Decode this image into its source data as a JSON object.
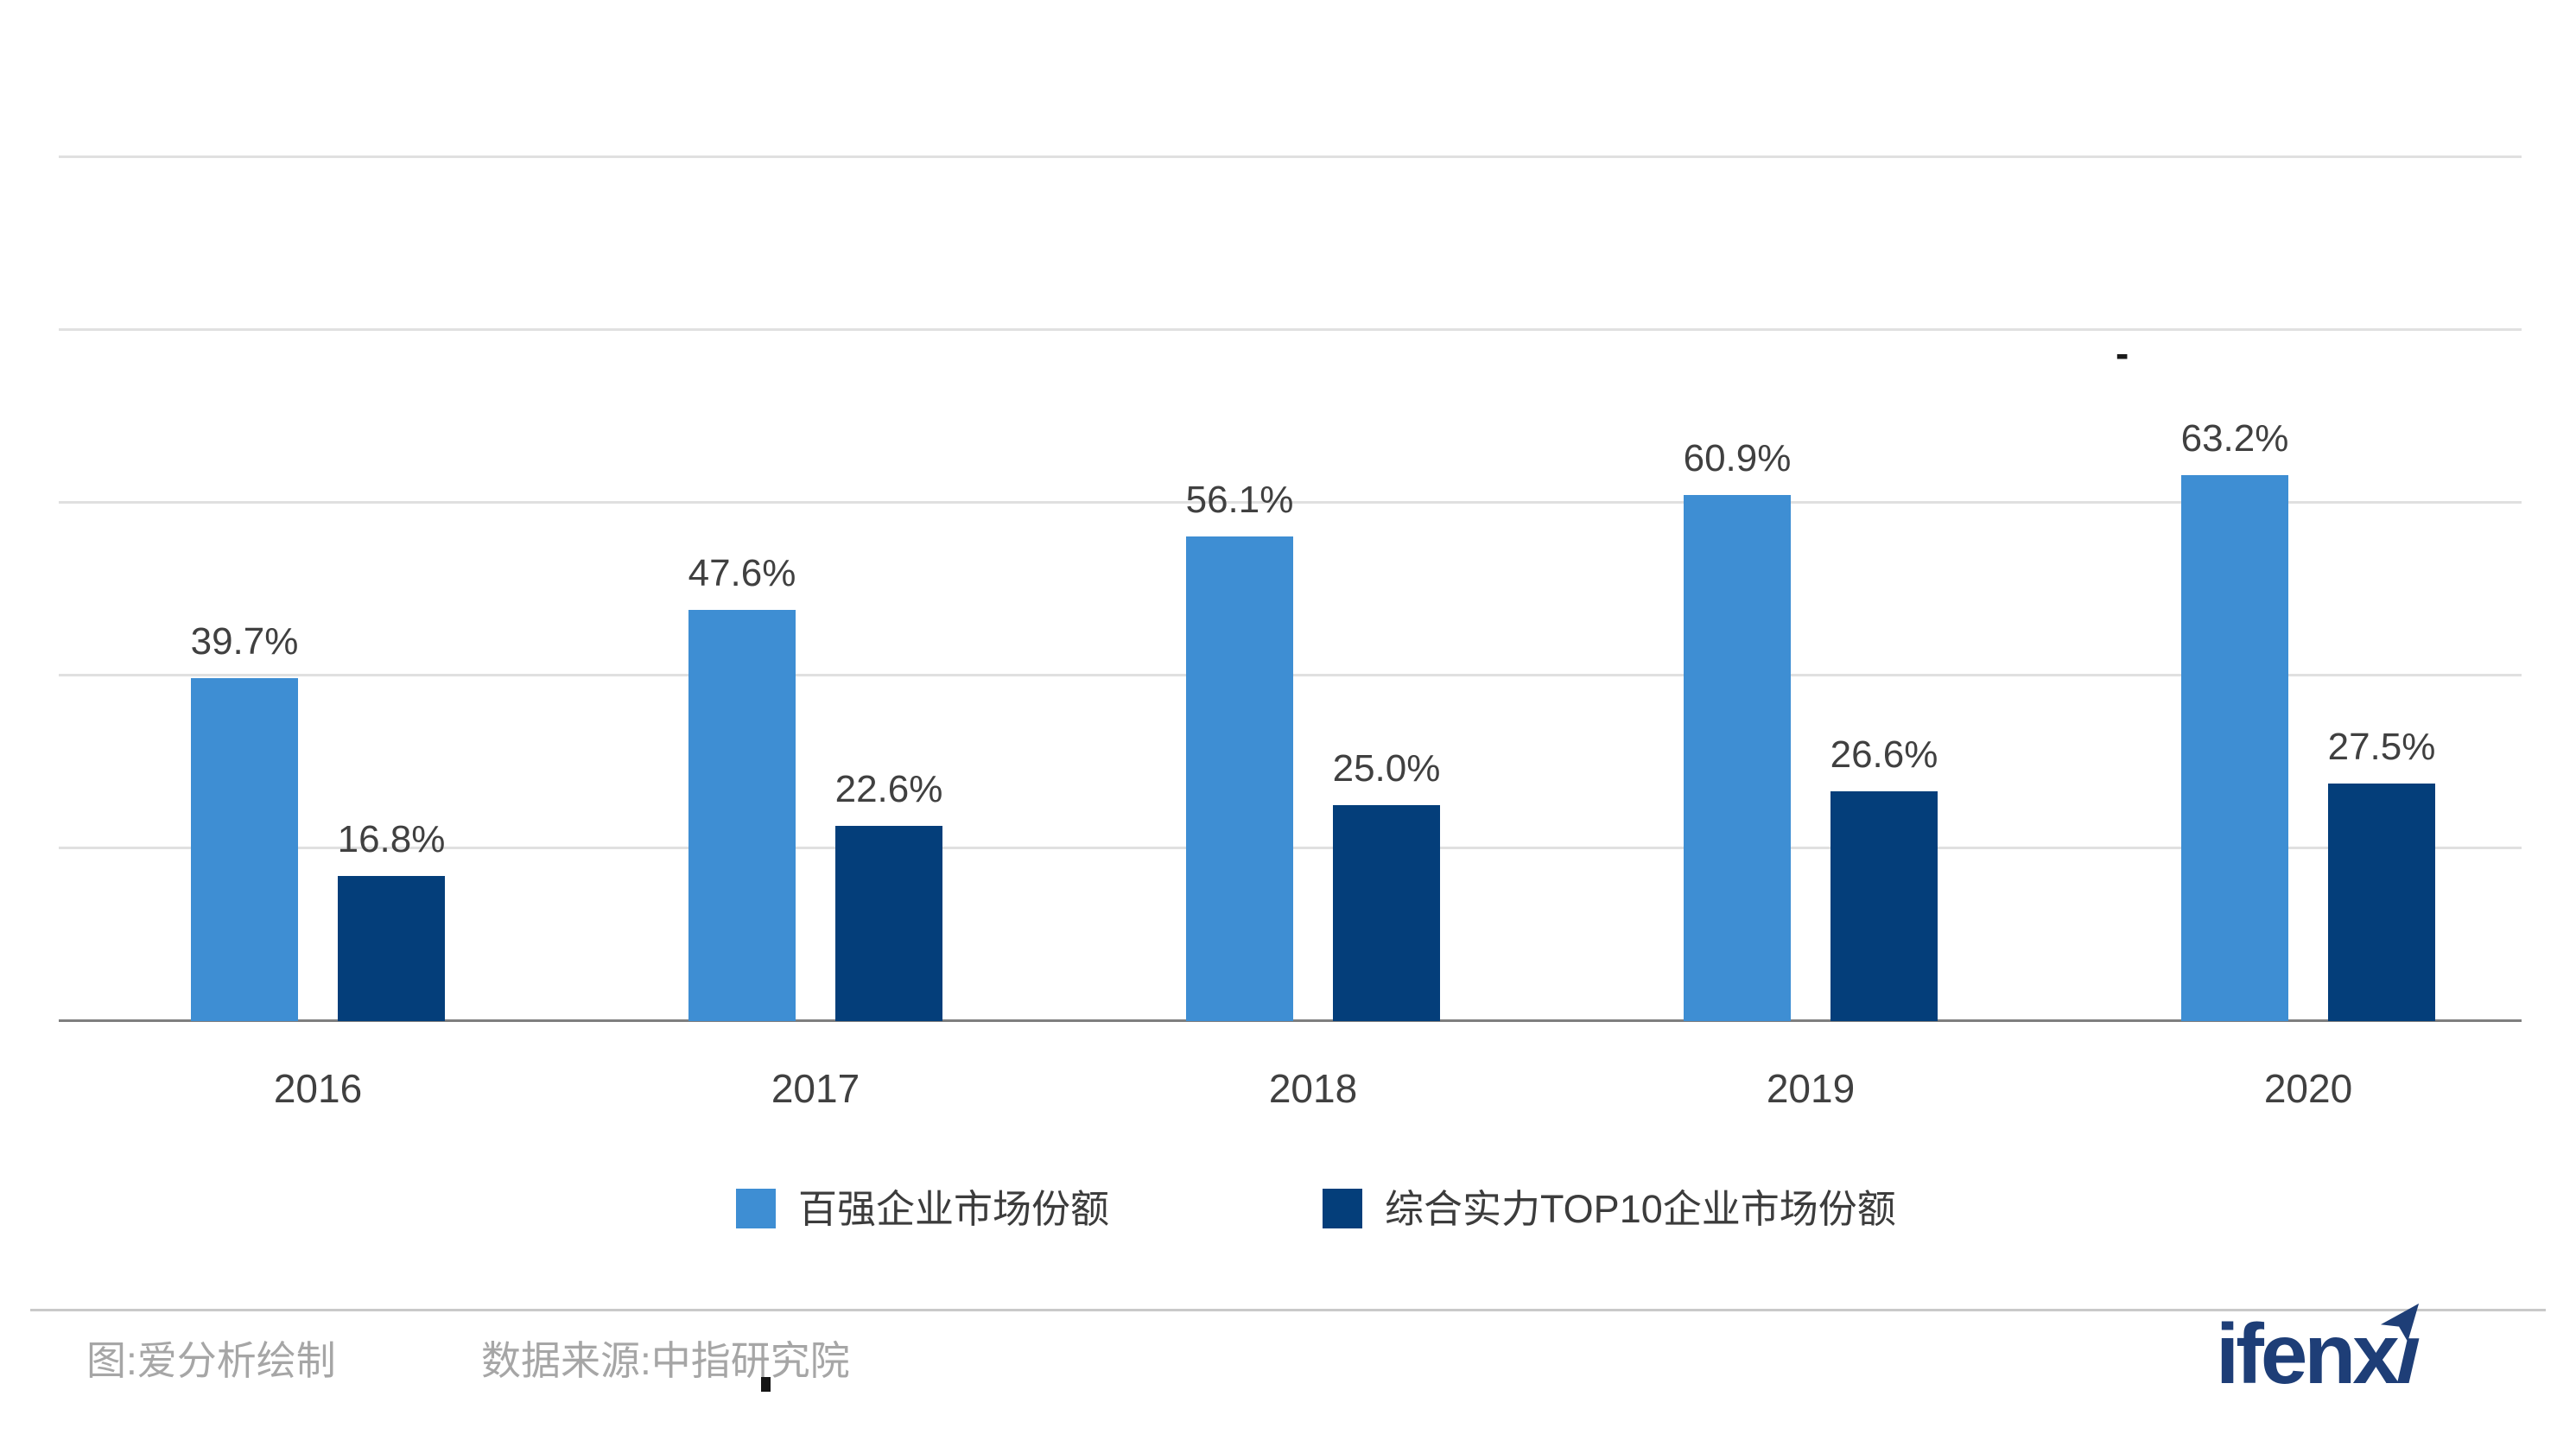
{
  "chart_data": {
    "type": "bar",
    "categories": [
      "2016",
      "2017",
      "2018",
      "2019",
      "2020"
    ],
    "series": [
      {
        "name": "百强企业市场份额",
        "color": "#3e8ed3",
        "values": [
          39.7,
          47.6,
          56.1,
          60.9,
          63.2
        ]
      },
      {
        "name": "综合实力TOP10企业市场份额",
        "color": "#043e7a",
        "values": [
          16.8,
          22.6,
          25.0,
          26.6,
          27.5
        ]
      }
    ],
    "value_suffix": "%",
    "value_labels": [
      [
        "39.7%",
        "47.6%",
        "56.1%",
        "60.9%",
        "63.2%"
      ],
      [
        "16.8%",
        "22.6%",
        "25.0%",
        "26.6%",
        "27.5%"
      ]
    ],
    "title": "",
    "xlabel": "",
    "ylabel": "",
    "ylim": [
      0,
      100
    ],
    "gridline_step": 20,
    "grid": true,
    "legend_position": "bottom"
  },
  "legend": {
    "items": [
      {
        "label": "百强企业市场份额",
        "color": "#3e8ed3"
      },
      {
        "label": "综合实力TOP10企业市场份额",
        "color": "#043e7a"
      }
    ]
  },
  "footer": {
    "credit": "图:爱分析绘制",
    "source": "数据来源:中指研究院"
  },
  "logo": {
    "text": "ifenxi",
    "color": "#1e3e77"
  },
  "artifacts": {
    "dash": "-"
  }
}
